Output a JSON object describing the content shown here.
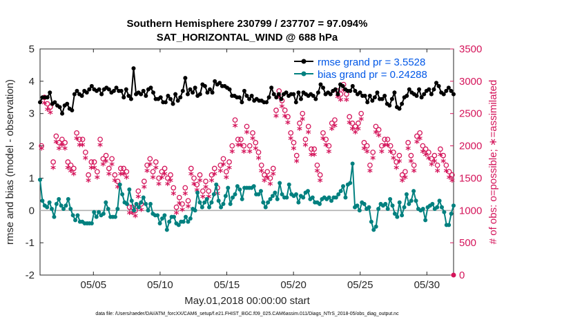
{
  "chart_data": {
    "type": "line",
    "title": "Southern Hemisphere 230799 / 237707 = 97.094%",
    "subtitle": "SAT_HORIZONTAL_WIND @ 688 hPa",
    "xlabel": "May.01,2018 00:00:00 start",
    "ylabel": "rmse and bias (model - observation)",
    "y2label": "# of obs: o=possible; ∗=assimilated",
    "x_start": "05/01",
    "x_end": "06/01",
    "xlim": [
      "05/01",
      "06/01"
    ],
    "ylim": [
      -2,
      5
    ],
    "y2lim": [
      0,
      3500
    ],
    "x_ticks": [
      "05/05",
      "05/10",
      "05/15",
      "05/20",
      "05/25",
      "05/30"
    ],
    "y_ticks": [
      "-2",
      "-1",
      "0",
      "1",
      "2",
      "3",
      "4",
      "5"
    ],
    "y2_ticks": [
      "0",
      "500",
      "1000",
      "1500",
      "2000",
      "2500",
      "3000",
      "3500"
    ],
    "grid": false,
    "legend_position": "top-right",
    "zero_line": 0,
    "series": [
      {
        "name": "rmse grand pr = 3.5528",
        "color": "#000000",
        "axis": "left",
        "values": [
          3.35,
          3.5,
          3.5,
          3.5,
          3.65,
          3.3,
          3.35,
          3.25,
          3.2,
          3.0,
          3.25,
          3.3,
          3.15,
          3.1,
          3.6,
          3.7,
          3.6,
          3.55,
          3.7,
          3.65,
          3.75,
          3.85,
          3.75,
          3.7,
          3.75,
          3.6,
          3.75,
          3.8,
          3.75,
          3.65,
          3.7,
          3.8,
          3.7,
          3.7,
          3.5,
          3.75,
          3.55,
          3.45,
          4.4,
          3.6,
          3.65,
          3.6,
          3.7,
          3.55,
          3.75,
          3.8,
          3.65,
          3.45,
          3.45,
          3.5,
          3.35,
          3.35,
          3.55,
          3.45,
          3.3,
          3.6,
          3.4,
          3.5,
          3.7,
          4.1,
          3.6,
          3.75,
          3.65,
          3.8,
          3.55,
          3.6,
          3.9,
          3.85,
          3.65,
          3.75,
          3.65,
          4.0,
          3.9,
          3.95,
          3.85,
          3.85,
          3.8,
          3.75,
          3.55,
          3.55,
          3.5,
          3.5,
          3.35,
          3.7,
          3.55,
          3.45,
          3.55,
          3.4,
          3.45,
          3.4,
          3.4,
          3.35,
          3.35,
          3.5,
          3.8,
          3.6,
          3.5,
          3.6,
          3.45,
          3.6,
          3.65,
          3.55,
          3.6,
          3.6,
          3.35,
          3.65,
          3.45,
          3.65,
          3.6,
          3.55,
          3.6,
          3.55,
          3.45,
          3.65,
          3.9,
          3.8,
          3.6,
          3.65,
          3.6,
          3.7,
          3.75,
          3.6,
          3.9,
          3.85,
          3.75,
          3.7,
          3.7,
          3.85,
          3.7,
          3.6,
          3.65,
          3.55,
          3.55,
          3.35,
          3.55,
          3.4,
          3.5,
          3.65,
          3.45,
          3.45,
          3.55,
          3.3,
          3.25,
          3.45,
          3.65,
          3.2,
          3.15,
          3.3,
          3.5,
          3.55,
          3.75,
          3.65,
          3.6,
          3.55,
          3.75,
          3.5,
          3.6,
          3.7,
          3.75,
          3.6,
          3.75,
          3.95,
          3.85,
          3.65,
          3.6,
          3.7,
          3.8,
          3.7,
          3.6
        ]
      },
      {
        "name": "bias grand pr = 0.24288",
        "color": "#00807f",
        "axis": "left",
        "values": [
          0.95,
          0.3,
          0.15,
          0.1,
          0.25,
          0.05,
          -0.2,
          0.2,
          0.35,
          0.15,
          0.05,
          0.15,
          0.35,
          0.05,
          -0.15,
          -0.3,
          -0.15,
          -0.35,
          -0.35,
          -0.4,
          -0.4,
          -0.4,
          -0.4,
          -0.05,
          -0.2,
          -0.05,
          -0.15,
          -0.1,
          0.25,
          0.05,
          -0.2,
          -0.2,
          -0.2,
          0.05,
          0.8,
          0.5,
          0.25,
          0.2,
          0.65,
          0.3,
          0.0,
          0.2,
          0.1,
          0.25,
          0.4,
          0.2,
          0.0,
          0.2,
          -0.1,
          -0.15,
          -0.15,
          -0.4,
          -0.25,
          -0.15,
          -0.6,
          -0.35,
          -0.2,
          -0.2,
          -0.4,
          -0.45,
          -0.35,
          -0.35,
          -0.2,
          -0.35,
          -0.25,
          0.05,
          0.0,
          0.55,
          0.25,
          0.1,
          0.25,
          0.35,
          0.1,
          0.25,
          0.5,
          0.8,
          0.3,
          0.1,
          0.2,
          0.45,
          0.7,
          0.2,
          0.4,
          0.5,
          0.75,
          0.65,
          0.35,
          0.7,
          0.7,
          0.7,
          0.7,
          0.75,
          0.5,
          0.5,
          0.6,
          0.25,
          0.1,
          0.25,
          0.35,
          0.45,
          0.55,
          0.35,
          0.85,
          0.5,
          0.4,
          0.4,
          0.8,
          0.5,
          0.45,
          0.5,
          0.25,
          0.45,
          0.4,
          0.55,
          0.6,
          0.35,
          0.4,
          0.25,
          0.25,
          0.2,
          0.35,
          0.4,
          0.35,
          0.4,
          0.3,
          0.4,
          0.4,
          0.5,
          0.6,
          0.75,
          0.4,
          0.8,
          0.85,
          1.45,
          0.1,
          0.15,
          0.0,
          0.25,
          0.2,
          0.05,
          0.1,
          -0.35,
          -0.6,
          -0.5,
          0.05,
          0.2,
          0.15,
          0.2,
          0.05,
          0.35,
          0.15,
          -0.1,
          -0.2,
          0.25,
          -0.15,
          0.1,
          0.5,
          0.2,
          0.3,
          0.6,
          0.3,
          0.05,
          0.0,
          0.05,
          -0.3,
          0.1,
          0.15,
          0.2,
          0.05,
          0.1,
          0.3,
          0.1,
          -0.05,
          -0.45,
          -0.45,
          -0.1,
          0.15
        ]
      },
      {
        "name": "",
        "color": "#d4145a",
        "axis": "right",
        "marker": "o",
        "values": [
          2000,
          2750,
          2650,
          2600,
          1750,
          2150,
          2050,
          2100,
          2050,
          1750,
          1700,
          1650,
          2200,
          2100,
          2100,
          1900,
          1550,
          1750,
          1750,
          1600,
          2100,
          1800,
          1850,
          1650,
          1800,
          1550,
          1450,
          1650,
          1650,
          1600,
          1050,
          1050,
          1000,
          1300,
          1100,
          1450,
          1700,
          1800,
          1600,
          1750,
          1500,
          1600,
          1650,
          1500,
          1550,
          1350,
          1050,
          1200,
          1100,
          1350,
          1150,
          1650,
          1500,
          1400,
          1550,
          1300,
          1450,
          1300,
          1550,
          1650,
          1350,
          1700,
          1800,
          1600,
          1750,
          2000,
          2400,
          2100,
          2100,
          2000,
          2300,
          2000,
          2200,
          2050,
          1900,
          1700,
          1550,
          1600,
          1500,
          1650,
          2550,
          2850,
          2700,
          2550,
          2450,
          2200,
          2050,
          1850,
          2350,
          2500,
          2100,
          2300,
          1950,
          1950,
          1700,
          1550,
          2200,
          2100,
          2000,
          2350,
          2400,
          2850,
          2800,
          2950,
          2800,
          2450,
          2350,
          2300,
          2350,
          2500,
          2050,
          2000,
          1700,
          1900,
          2300,
          2250,
          2000,
          2100,
          2100,
          2000,
          1900,
          1750,
          1850,
          1550,
          1600,
          2050,
          1850,
          1700,
          2150,
          2200,
          2000,
          1950,
          1900,
          1800,
          1850,
          1700,
          1950,
          1850,
          1700,
          1600,
          1550
        ]
      },
      {
        "name": "",
        "color": "#d4145a",
        "axis": "right",
        "marker": "*",
        "values": [
          1950,
          2650,
          2550,
          2500,
          1650,
          2050,
          1950,
          2000,
          1950,
          1650,
          1600,
          1550,
          2100,
          2000,
          2000,
          1800,
          1450,
          1650,
          1650,
          1500,
          2000,
          1700,
          1750,
          1550,
          1700,
          1450,
          1350,
          1550,
          1550,
          1500,
          950,
          950,
          900,
          1200,
          1000,
          1350,
          1600,
          1700,
          1500,
          1650,
          1400,
          1500,
          1550,
          1400,
          1450,
          1250,
          950,
          1100,
          1000,
          1250,
          1050,
          1550,
          1400,
          1300,
          1450,
          1200,
          1350,
          1200,
          1450,
          1550,
          1250,
          1600,
          1700,
          1500,
          1650,
          1900,
          2300,
          2000,
          2000,
          1900,
          2200,
          1900,
          2100,
          1950,
          1800,
          1600,
          1450,
          1500,
          1400,
          1550,
          2450,
          2750,
          2600,
          2450,
          2350,
          2100,
          1950,
          1750,
          2250,
          2400,
          2000,
          2200,
          1850,
          1850,
          1600,
          1450,
          2100,
          2000,
          1900,
          2250,
          2300,
          2750,
          2700,
          2850,
          2700,
          2350,
          2250,
          2200,
          2250,
          2400,
          1950,
          1900,
          1600,
          1800,
          2200,
          2150,
          1900,
          2000,
          2000,
          1900,
          1800,
          1650,
          1750,
          1450,
          1500,
          1950,
          1750,
          1600,
          2050,
          2100,
          1900,
          1850,
          1800,
          1700,
          1750,
          1600,
          1850,
          1750,
          1600,
          1500,
          1450
        ]
      }
    ],
    "footnote": "data file: /Users/raeder/DAI/ATM_forcXX/CAM6_setup/f.e21.FHIST_BGC.f09_025.CAM6assim.011/Diags_NTrS_2018-05/obs_diag_output.nc"
  }
}
